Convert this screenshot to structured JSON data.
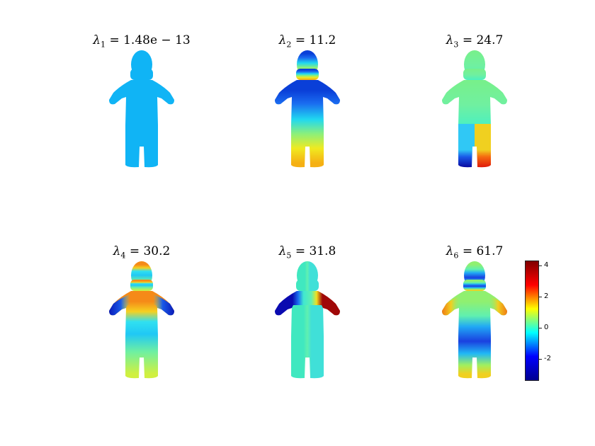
{
  "panels": [
    {
      "symbol": "λ",
      "index": "1",
      "value": "1.48e − 13"
    },
    {
      "symbol": "λ",
      "index": "2",
      "value": "11.2"
    },
    {
      "symbol": "λ",
      "index": "3",
      "value": "24.7"
    },
    {
      "symbol": "λ",
      "index": "4",
      "value": "30.2"
    },
    {
      "symbol": "λ",
      "index": "5",
      "value": "31.8"
    },
    {
      "symbol": "λ",
      "index": "6",
      "value": "61.7"
    }
  ],
  "colorbar": {
    "ticks": [
      "4",
      "2",
      "0",
      "-2"
    ],
    "range": [
      -3.4,
      4.2
    ],
    "colormap": [
      "#00008f",
      "#0000ff",
      "#00ffff",
      "#ffff00",
      "#ff0000",
      "#800000"
    ]
  }
}
